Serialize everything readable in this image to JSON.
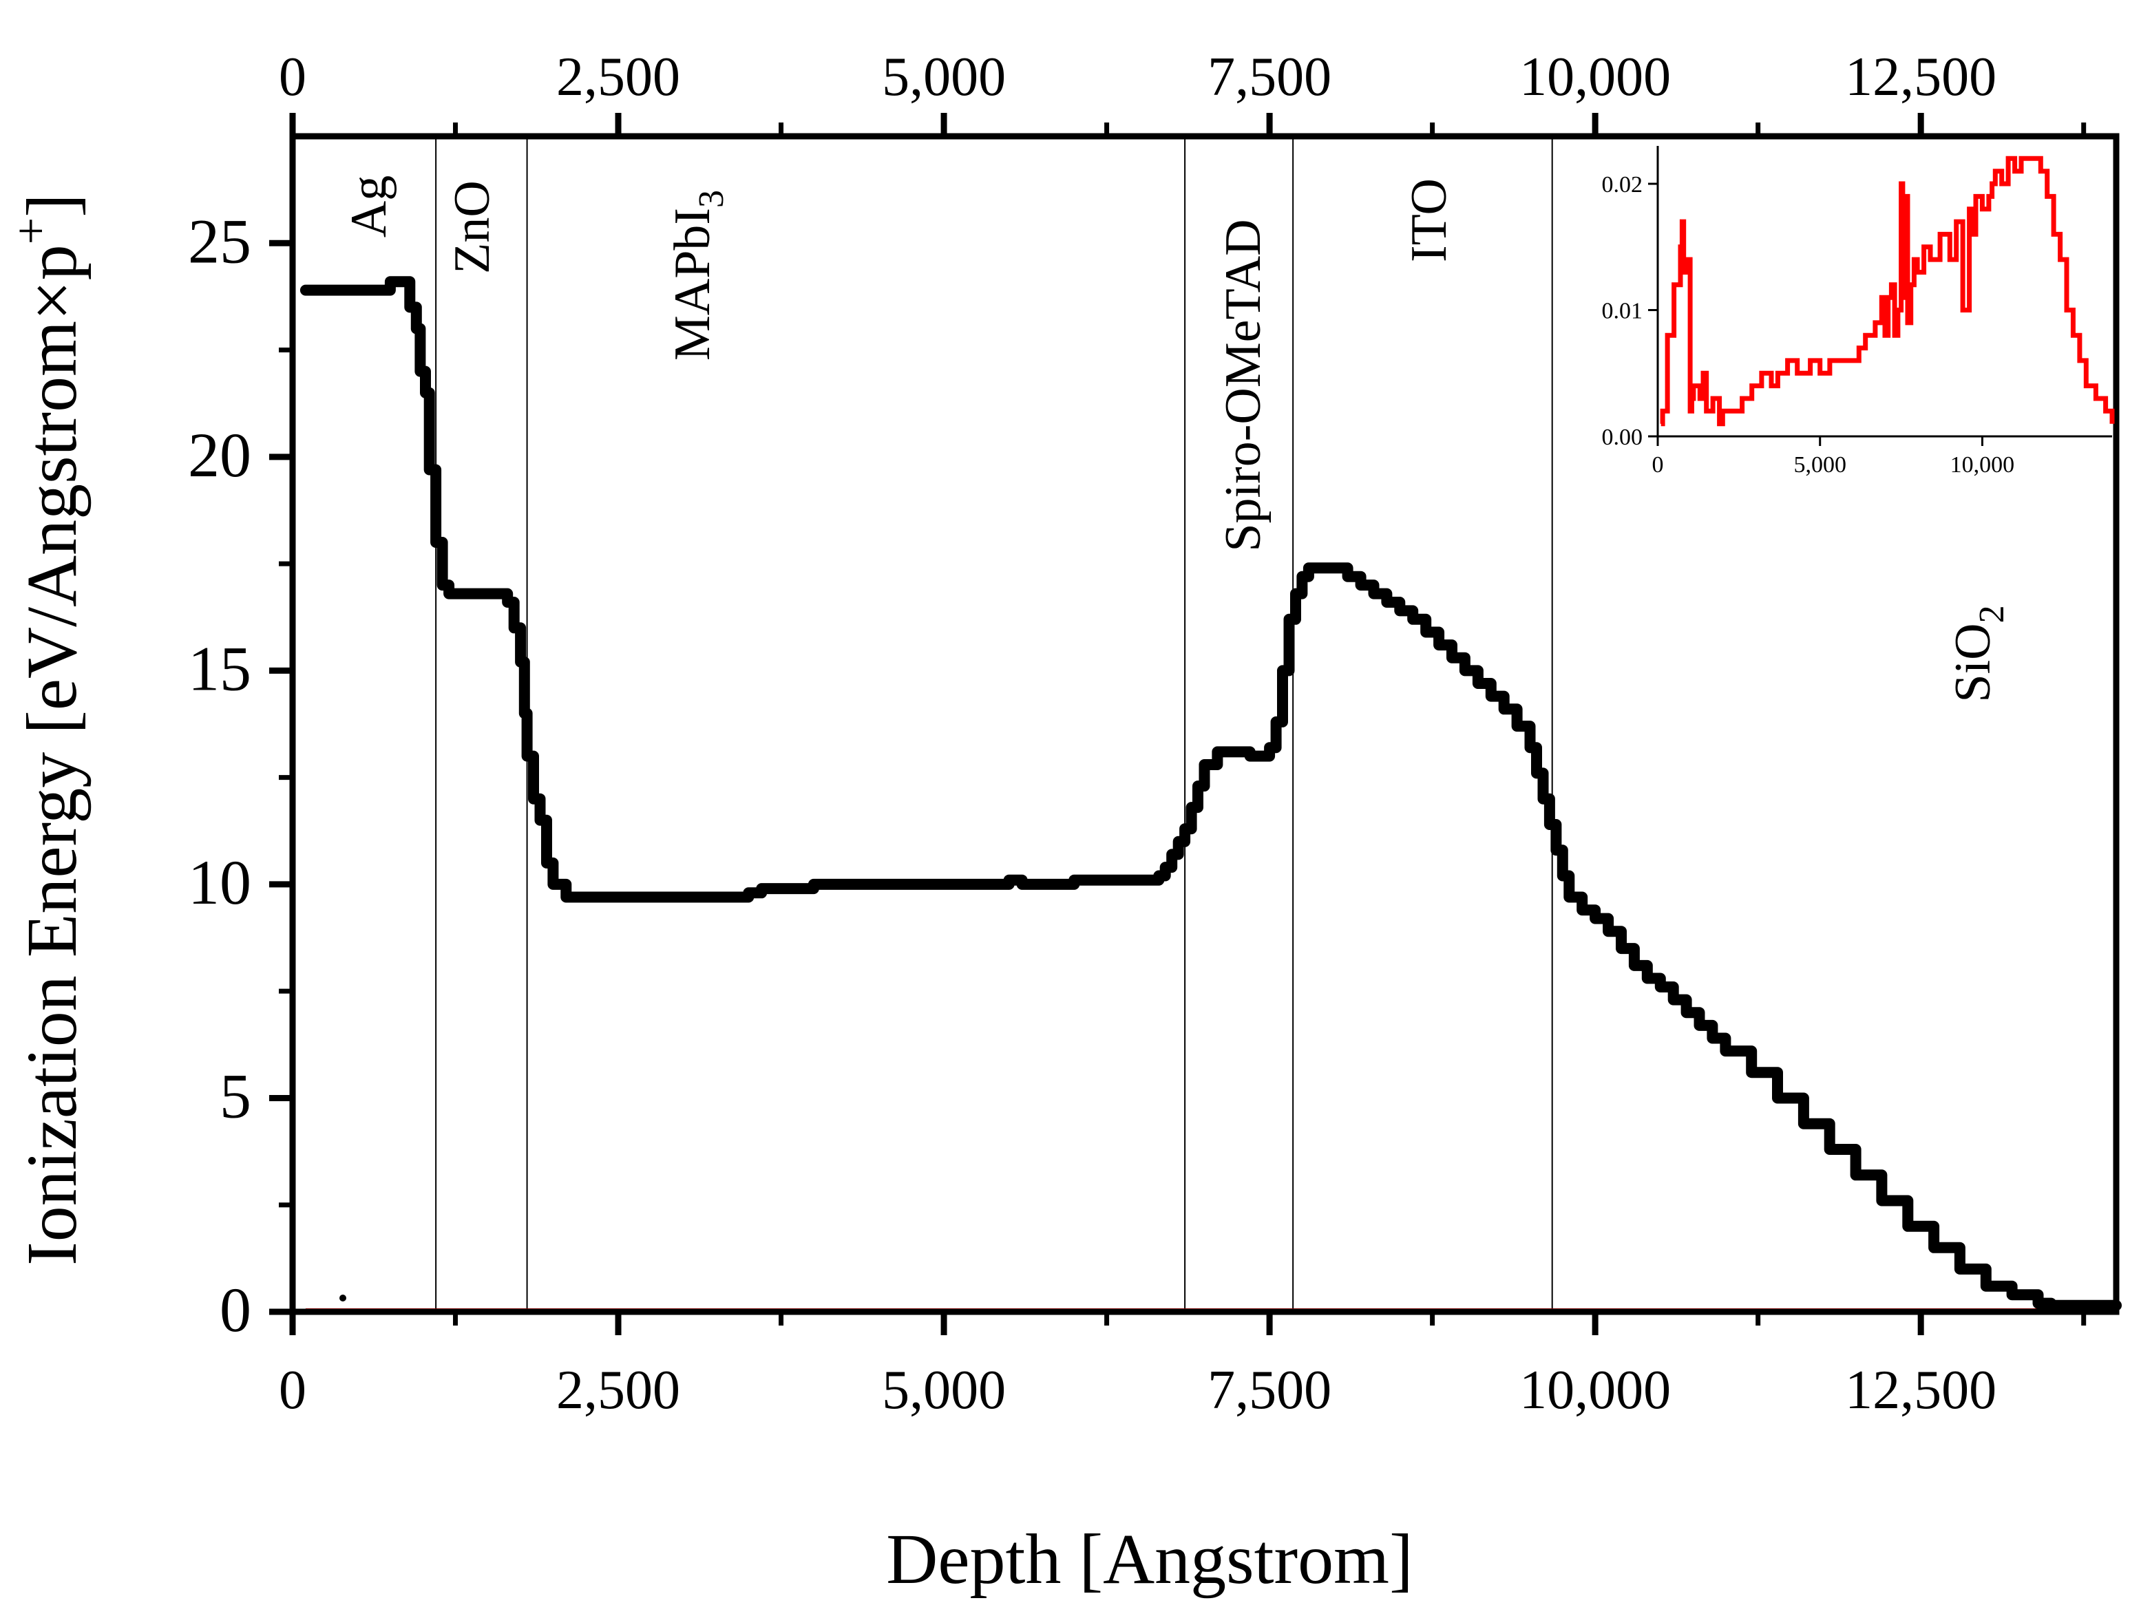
{
  "chart_data": {
    "type": "line",
    "xlabel": "Depth [Angstrom]",
    "ylabel": "Ionization Energy [eV/Angstrom×p",
    "ylabel_superscript": "+",
    "ylabel_close": "]",
    "xlim": [
      0,
      14000
    ],
    "ylim": [
      0,
      27.5
    ],
    "x_ticks": [
      0,
      2500,
      5000,
      7500,
      10000,
      12500
    ],
    "x_tick_labels": [
      "0",
      "2,500",
      "5,000",
      "7,500",
      "10,000",
      "12,500"
    ],
    "y_ticks": [
      0,
      5,
      10,
      15,
      20,
      25
    ],
    "y_tick_labels": [
      "0",
      "5",
      "10",
      "15",
      "20",
      "25"
    ],
    "layer_boundaries": [
      1100,
      1800,
      6850,
      7680,
      9670
    ],
    "layers": [
      {
        "name": "Ag",
        "sub": ""
      },
      {
        "name": "ZnO",
        "sub": ""
      },
      {
        "name": "MAPbI",
        "sub": "3"
      },
      {
        "name": "Spiro-OMeTAD",
        "sub": ""
      },
      {
        "name": "ITO",
        "sub": ""
      },
      {
        "name": "SiO",
        "sub": "2"
      }
    ],
    "series": [
      {
        "name": "main",
        "color": "#000000",
        "x": [
          100,
          300,
          500,
          700,
          750,
          850,
          900,
          950,
          980,
          1020,
          1050,
          1100,
          1150,
          1200,
          1300,
          1450,
          1600,
          1650,
          1700,
          1750,
          1780,
          1800,
          1850,
          1900,
          1950,
          2000,
          2100,
          2500,
          3000,
          3500,
          3600,
          4000,
          4500,
          5000,
          5500,
          5600,
          6000,
          6500,
          6650,
          6700,
          6750,
          6800,
          6850,
          6900,
          6950,
          7000,
          7100,
          7200,
          7350,
          7450,
          7500,
          7550,
          7600,
          7650,
          7700,
          7750,
          7800,
          7900,
          8000,
          8100,
          8200,
          8300,
          8400,
          8500,
          8600,
          8700,
          8800,
          8900,
          9000,
          9100,
          9200,
          9300,
          9400,
          9500,
          9550,
          9600,
          9650,
          9700,
          9750,
          9800,
          9900,
          10000,
          10100,
          10200,
          10300,
          10400,
          10500,
          10600,
          10700,
          10800,
          10900,
          11000,
          11200,
          11400,
          11600,
          11800,
          12000,
          12200,
          12400,
          12600,
          12800,
          13000,
          13200,
          13400,
          13500,
          13600,
          13800,
          14000
        ],
        "y": [
          23.9,
          23.9,
          23.9,
          23.9,
          24.1,
          24.1,
          23.5,
          23.0,
          22.0,
          21.5,
          19.7,
          18.0,
          17.0,
          16.8,
          16.8,
          16.8,
          16.8,
          16.6,
          16.0,
          15.2,
          14.0,
          13.0,
          12.0,
          11.5,
          10.5,
          10.0,
          9.7,
          9.7,
          9.7,
          9.8,
          9.9,
          10.0,
          10.0,
          10.0,
          10.1,
          10.0,
          10.1,
          10.1,
          10.2,
          10.4,
          10.7,
          11.0,
          11.3,
          11.8,
          12.3,
          12.8,
          13.1,
          13.1,
          13.0,
          13.0,
          13.2,
          13.8,
          15.0,
          16.2,
          16.8,
          17.2,
          17.4,
          17.4,
          17.4,
          17.2,
          17.0,
          16.8,
          16.6,
          16.4,
          16.2,
          15.9,
          15.6,
          15.3,
          15.0,
          14.7,
          14.4,
          14.1,
          13.7,
          13.2,
          12.6,
          12.0,
          11.4,
          10.8,
          10.2,
          9.7,
          9.4,
          9.2,
          8.9,
          8.5,
          8.1,
          7.8,
          7.6,
          7.3,
          7.0,
          6.7,
          6.4,
          6.1,
          5.6,
          5.0,
          4.4,
          3.8,
          3.2,
          2.6,
          2.0,
          1.5,
          1.0,
          0.6,
          0.4,
          0.2,
          0.15,
          0.15,
          0.15,
          0.15
        ]
      },
      {
        "name": "baseline",
        "color": "#e00000",
        "x": [
          100,
          14000
        ],
        "y": [
          0,
          0
        ]
      }
    ],
    "inset": {
      "xlim": [
        0,
        14000
      ],
      "ylim": [
        0,
        0.023
      ],
      "x_ticks": [
        0,
        5000,
        10000
      ],
      "x_tick_labels": [
        "0",
        "5,000",
        "10,000"
      ],
      "y_ticks": [
        0,
        0.01,
        0.02
      ],
      "y_tick_labels": [
        "0.00",
        "0.01",
        "0.02"
      ],
      "series": [
        {
          "name": "inset-series",
          "color": "#ff0000",
          "x": [
            100,
            150,
            300,
            500,
            700,
            750,
            800,
            850,
            1000,
            1050,
            1100,
            1300,
            1400,
            1500,
            1700,
            1900,
            2000,
            2300,
            2600,
            2900,
            3200,
            3500,
            3700,
            4000,
            4300,
            4700,
            5000,
            5300,
            5600,
            5900,
            6200,
            6400,
            6700,
            6900,
            7000,
            7100,
            7200,
            7300,
            7400,
            7500,
            7550,
            7600,
            7700,
            7800,
            7900,
            8000,
            8200,
            8400,
            8700,
            9000,
            9200,
            9400,
            9600,
            9700,
            9800,
            10000,
            10200,
            10300,
            10400,
            10600,
            10800,
            11000,
            11200,
            11500,
            11800,
            12000,
            12200,
            12400,
            12600,
            12800,
            13000,
            13200,
            13500,
            13800,
            14000
          ],
          "y": [
            0.001,
            0.002,
            0.008,
            0.012,
            0.015,
            0.017,
            0.013,
            0.014,
            0.002,
            0.003,
            0.004,
            0.003,
            0.005,
            0.002,
            0.003,
            0.001,
            0.002,
            0.002,
            0.003,
            0.004,
            0.005,
            0.004,
            0.005,
            0.006,
            0.005,
            0.006,
            0.005,
            0.006,
            0.006,
            0.006,
            0.007,
            0.008,
            0.009,
            0.011,
            0.008,
            0.011,
            0.012,
            0.008,
            0.01,
            0.02,
            0.011,
            0.019,
            0.009,
            0.012,
            0.014,
            0.013,
            0.015,
            0.014,
            0.016,
            0.014,
            0.017,
            0.01,
            0.018,
            0.016,
            0.019,
            0.018,
            0.019,
            0.02,
            0.021,
            0.02,
            0.022,
            0.021,
            0.022,
            0.022,
            0.021,
            0.019,
            0.016,
            0.014,
            0.01,
            0.008,
            0.006,
            0.004,
            0.003,
            0.002,
            0.001
          ]
        }
      ]
    }
  }
}
